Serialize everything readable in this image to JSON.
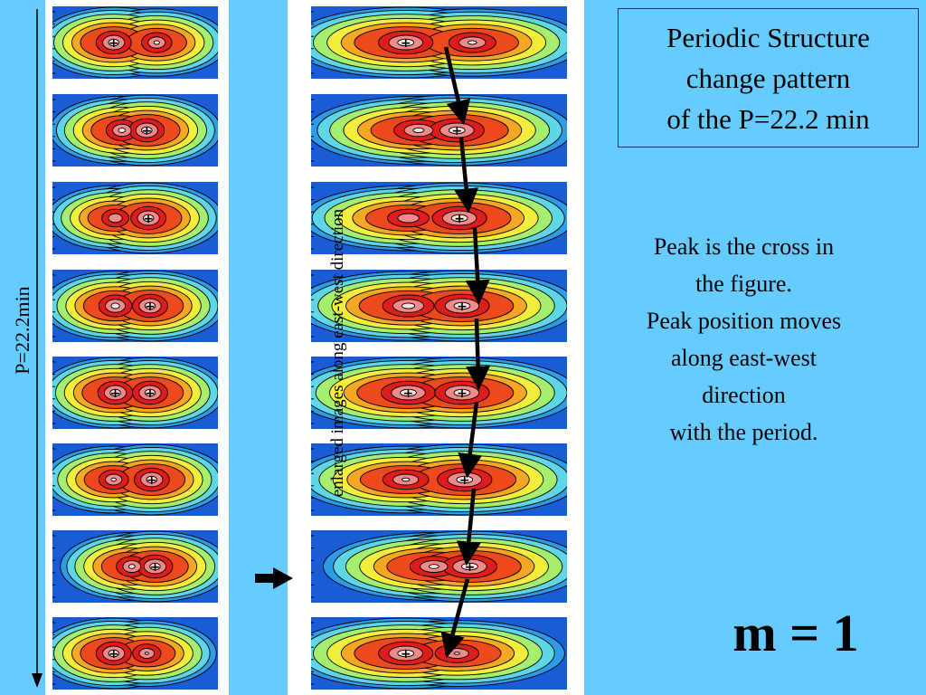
{
  "period_label": "P=22.2min",
  "enlarged_caption": "enlarged images along east-west direction",
  "title_lines": [
    "Periodic Structure",
    "change pattern",
    "of the P=22.2 min"
  ],
  "description_lines": [
    "Peak is the cross in",
    "the figure.",
    "Peak position moves",
    "along east-west",
    "direction",
    "with the period."
  ],
  "mode_label": "m = 1",
  "peak_marker": "+",
  "colors": {
    "background": "#66ccff",
    "panel": "#ffffff",
    "colormap": [
      "#1a5cd6",
      "#2d9be6",
      "#5fd6e6",
      "#a6ef6e",
      "#f2ef3c",
      "#f5a623",
      "#ec4a1c",
      "#de1c1c",
      "#ef8a8a",
      "#fbe0e0"
    ],
    "contour": "#000000",
    "arrow": "#000000"
  },
  "frames": [
    {
      "blobs": [
        [
          -0.13,
          0.0,
          1.0
        ],
        [
          0.13,
          0.0,
          0.93
        ]
      ],
      "peaks": [
        -0.13
      ]
    },
    {
      "blobs": [
        [
          -0.08,
          0.0,
          0.95
        ],
        [
          0.07,
          0.0,
          1.0
        ]
      ],
      "peaks": [
        0.07
      ]
    },
    {
      "blobs": [
        [
          -0.12,
          0.0,
          0.88
        ],
        [
          0.08,
          0.0,
          1.0
        ]
      ],
      "peaks": [
        0.08
      ]
    },
    {
      "blobs": [
        [
          -0.12,
          0.0,
          0.97
        ],
        [
          0.09,
          0.0,
          1.0
        ]
      ],
      "peaks": [
        0.09
      ]
    },
    {
      "blobs": [
        [
          -0.12,
          0.0,
          1.0
        ],
        [
          0.09,
          0.0,
          1.0
        ]
      ],
      "peaks": [
        -0.12,
        0.09
      ]
    },
    {
      "blobs": [
        [
          -0.13,
          0.0,
          0.92
        ],
        [
          0.1,
          0.0,
          1.0
        ]
      ],
      "peaks": [
        0.1
      ]
    },
    {
      "blobs": [
        [
          -0.02,
          0.0,
          0.94
        ],
        [
          0.12,
          0.0,
          1.0
        ]
      ],
      "peaks": [
        0.12
      ]
    },
    {
      "blobs": [
        [
          -0.13,
          0.0,
          1.0
        ],
        [
          0.07,
          0.0,
          0.9
        ]
      ],
      "peaks": [
        -0.13
      ]
    }
  ]
}
